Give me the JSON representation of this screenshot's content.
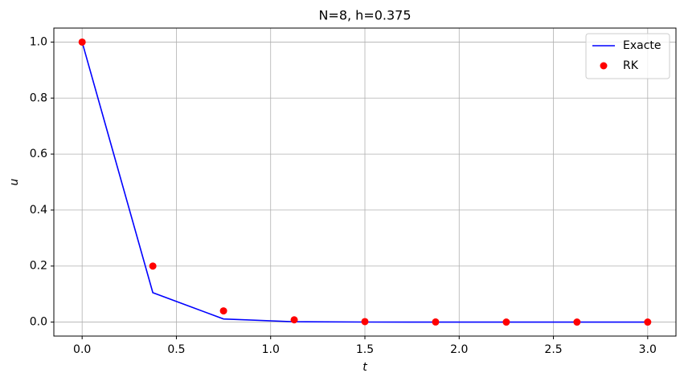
{
  "chart_data": {
    "type": "line",
    "title": "N=8, h=0.375",
    "x_label": "t",
    "y_label": "u",
    "x": [
      0,
      0.375,
      0.75,
      1.125,
      1.5,
      1.875,
      2.25,
      2.625,
      3.0
    ],
    "series": [
      {
        "name": "Exacte",
        "color": "#0000ff",
        "style": "line",
        "values": [
          1.0,
          0.105,
          0.0111,
          0.00117,
          0.000123,
          1.3e-05,
          1.4e-06,
          1.5e-07,
          2e-08
        ]
      },
      {
        "name": "RK",
        "color": "#ff0000",
        "style": "marker",
        "values": [
          1.0,
          0.2,
          0.04,
          0.008,
          0.0016,
          0.00032,
          6.4e-05,
          1.28e-05,
          2.56e-06
        ]
      }
    ],
    "xlim": [
      -0.15,
      3.15
    ],
    "ylim": [
      -0.05,
      1.05
    ],
    "xticks": [
      {
        "value": 0,
        "label": "0.0"
      },
      {
        "value": 0.5,
        "label": "0.5"
      },
      {
        "value": 1,
        "label": "1.0"
      },
      {
        "value": 1.5,
        "label": "1.5"
      },
      {
        "value": 2,
        "label": "2.0"
      },
      {
        "value": 2.5,
        "label": "2.5"
      },
      {
        "value": 3,
        "label": "3.0"
      }
    ],
    "yticks": [
      {
        "value": 0,
        "label": "0.0"
      },
      {
        "value": 0.2,
        "label": "0.2"
      },
      {
        "value": 0.4,
        "label": "0.4"
      },
      {
        "value": 0.6,
        "label": "0.6"
      },
      {
        "value": 0.8,
        "label": "0.8"
      },
      {
        "value": 1,
        "label": "1.0"
      }
    ],
    "grid": true,
    "legend": "upper right"
  }
}
